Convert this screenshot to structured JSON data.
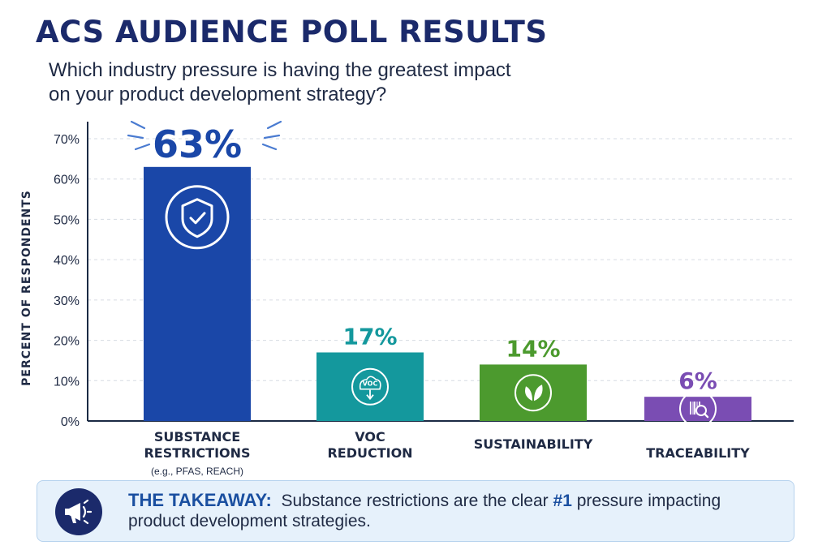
{
  "header": {
    "title": "ACS AUDIENCE POLL RESULTS",
    "subtitle": "Which industry pressure is having the greatest impact on your product development strategy?"
  },
  "chart_data": {
    "type": "bar",
    "categories": [
      [
        "SUBSTANCE",
        "RESTRICTIONS"
      ],
      [
        "VOC",
        "REDUCTION"
      ],
      [
        "SUSTAINABILITY"
      ],
      [
        "TRACEABILITY"
      ]
    ],
    "category_notes": [
      "(e.g., PFAS, REACH)",
      "",
      "",
      ""
    ],
    "values": [
      63,
      17,
      14,
      6
    ],
    "value_labels": [
      "63%",
      "17%",
      "14%",
      "6%"
    ],
    "colors": [
      "#1a47a8",
      "#14989d",
      "#4c9a2e",
      "#7a4db3"
    ],
    "label_colors": [
      "#1a47a8",
      "#14989d",
      "#4c9a2e",
      "#7a4db3"
    ],
    "icons": [
      "shield-check-icon",
      "voc-cloud-icon",
      "leaf-icon",
      "barcode-magnifier-icon"
    ],
    "icon_texts": [
      "",
      "VOC",
      "",
      ""
    ],
    "ylabel": "PERCENT OF RESPONDENTS",
    "ylim": [
      0,
      70
    ],
    "yticks": [
      "0%",
      "10%",
      "20%",
      "30%",
      "40%",
      "50%",
      "60%",
      "70%"
    ],
    "grid": true
  },
  "takeaway": {
    "label": "THE TAKEAWAY:",
    "text_before": "Substance restrictions are the clear",
    "highlight": "#1",
    "text_after": "pressure impacting product development strategies.",
    "icon": "megaphone-icon"
  }
}
